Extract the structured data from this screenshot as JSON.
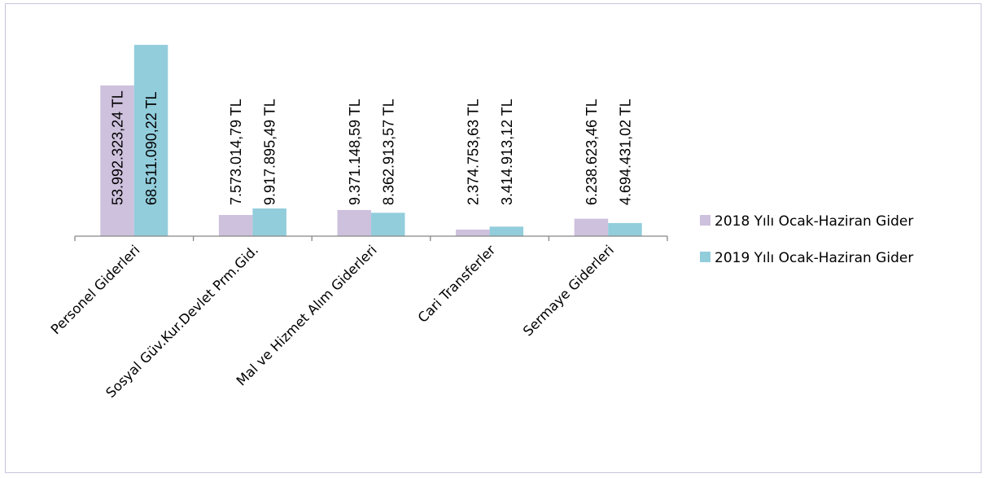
{
  "chart_data": {
    "type": "bar",
    "categories": [
      "Personel Giderleri",
      "Sosyal Güv.Kur.Devlet Prm.Gid.",
      "Mal ve Hizmet Alım Giderleri",
      "Cari Transferler",
      "Sermaye Giderleri"
    ],
    "series": [
      {
        "name": "2018 Yılı Ocak-Haziran Gider",
        "color": "#cdc1dd",
        "values": [
          53992323.24,
          7573014.79,
          9371148.59,
          2374753.63,
          6238623.46
        ],
        "labels": [
          "53.992.323,24 TL",
          "7.573.014,79 TL",
          "9.371.148,59 TL",
          "2.374.753,63 TL",
          "6.238.623,46 TL"
        ]
      },
      {
        "name": "2019 Yılı Ocak-Haziran Gider",
        "color": "#92cddc",
        "values": [
          68511090.22,
          9917895.49,
          8362913.57,
          3414913.12,
          4694431.02
        ],
        "labels": [
          "68.511.090,22 TL",
          "9.917.895,49 TL",
          "8.362.913,57 TL",
          "3.414.913,12 TL",
          "4.694.431,02 TL"
        ]
      }
    ],
    "ylim": [
      0,
      70000000
    ],
    "grid": false,
    "legend": "right"
  }
}
